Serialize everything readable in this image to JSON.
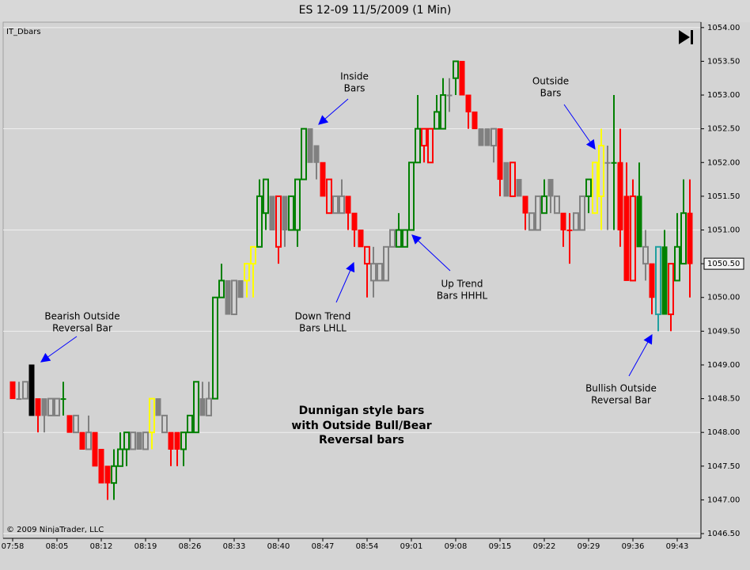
{
  "chart_data": {
    "type": "candlestick",
    "title": "ES 12-09  11/5/2009 (1 Min)",
    "indicator_label": "IT_Dbars",
    "copyright": "© 2009 NinjaTrader, LLC",
    "categories": [
      "07:58",
      null,
      null,
      null,
      null,
      null,
      null,
      "08:05",
      null,
      null,
      null,
      null,
      null,
      null,
      "08:12",
      null,
      null,
      null,
      null,
      null,
      null,
      "08:19",
      null,
      null,
      null,
      null,
      null,
      null,
      "08:26",
      null,
      null,
      null,
      null,
      null,
      null,
      "08:33",
      null,
      null,
      null,
      null,
      null,
      null,
      "08:40",
      null,
      null,
      null,
      null,
      null,
      null,
      "08:47",
      null,
      null,
      null,
      null,
      null,
      null,
      "08:54",
      null,
      null,
      null,
      null,
      null,
      null,
      "09:01",
      null,
      null,
      null,
      null,
      null,
      null,
      "09:08",
      null,
      null,
      null,
      null,
      null,
      null,
      "09:15",
      null,
      null,
      null,
      null,
      null,
      null,
      "09:22",
      null,
      null,
      null,
      null,
      null,
      null,
      "09:29",
      null,
      null,
      null,
      null,
      null,
      null,
      "09:36",
      null,
      null,
      null,
      null,
      null,
      null,
      "09:43",
      null,
      null
    ],
    "open": [
      1048.75,
      1048.5,
      1048.5,
      1049.0,
      1048.5,
      1048.5,
      1048.25,
      1048.25,
      1048.5,
      1048.25,
      1048.0,
      1048.0,
      1047.75,
      1048.0,
      1047.75,
      1047.5,
      1047.25,
      1047.5,
      1047.75,
      1047.75,
      1048.0,
      1047.75,
      1048.0,
      1048.5,
      1048.0,
      1048.0,
      1048.0,
      1047.75,
      1048.0,
      1048.0,
      1048.5,
      1048.25,
      1048.5,
      1050.0,
      1050.25,
      1049.75,
      1050.25,
      1050.25,
      1050.5,
      1050.75,
      1051.25,
      1051.5,
      1050.75,
      1051.5,
      1051.0,
      1051.0,
      1051.75,
      1052.5,
      1052.25,
      1052.0,
      1051.25,
      1051.25,
      1051.25,
      1051.5,
      1051.25,
      1051.0,
      1050.5,
      1050.25,
      1050.25,
      1050.25,
      1050.75,
      1050.75,
      1050.75,
      1051.0,
      1052.0,
      1052.25,
      1052.0,
      1052.5,
      1052.5,
      1053.0,
      1053.25,
      1053.5,
      1053.0,
      1052.75,
      1052.5,
      1052.5,
      1052.25,
      1052.5,
      1052.0,
      1051.5,
      1051.75,
      1051.5,
      1051.0,
      1051.0,
      1051.25,
      1051.75,
      1051.25,
      1051.25,
      1051.0,
      1051.0,
      1051.0,
      1051.5,
      1051.25,
      1051.5,
      1052.0,
      1052.0,
      1052.0,
      1051.5,
      1050.25,
      1051.5,
      1050.5,
      1050.5,
      1049.75,
      1050.75,
      1049.75,
      1050.25,
      1050.5,
      1051.25
    ],
    "high": [
      1048.75,
      1048.75,
      1048.75,
      1049.0,
      1048.5,
      1048.5,
      1048.5,
      1048.5,
      1048.75,
      1048.25,
      1048.25,
      1048.0,
      1048.25,
      1048.0,
      1047.75,
      1047.5,
      1047.75,
      1048.0,
      1048.0,
      1048.0,
      1048.0,
      1048.0,
      1048.5,
      1048.5,
      1048.25,
      1048.0,
      1048.0,
      1048.0,
      1048.25,
      1048.75,
      1048.75,
      1048.75,
      1050.0,
      1050.5,
      1050.25,
      1050.25,
      1050.25,
      1050.5,
      1050.75,
      1051.75,
      1051.75,
      1051.5,
      1051.5,
      1051.5,
      1051.5,
      1051.75,
      1052.5,
      1052.5,
      1052.25,
      1052.0,
      1051.75,
      1051.5,
      1051.75,
      1051.5,
      1051.25,
      1051.0,
      1050.75,
      1050.75,
      1050.5,
      1050.75,
      1051.0,
      1051.25,
      1051.0,
      1052.0,
      1053.0,
      1052.5,
      1052.5,
      1053.0,
      1053.25,
      1053.25,
      1053.5,
      1053.5,
      1053.0,
      1052.75,
      1052.5,
      1052.5,
      1052.5,
      1052.5,
      1052.0,
      1052.0,
      1051.75,
      1051.5,
      1051.25,
      1051.5,
      1051.75,
      1051.75,
      1051.5,
      1051.25,
      1051.25,
      1051.25,
      1051.5,
      1051.75,
      1052.0,
      1052.5,
      1052.25,
      1053.0,
      1052.5,
      1052.0,
      1051.75,
      1052.0,
      1051.0,
      1050.5,
      1050.75,
      1051.0,
      1050.5,
      1051.25,
      1051.75,
      1051.75
    ],
    "low": [
      1048.5,
      1048.5,
      1048.5,
      1048.25,
      1048.0,
      1048.0,
      1048.25,
      1048.25,
      1048.25,
      1048.0,
      1048.0,
      1047.75,
      1047.75,
      1047.5,
      1047.25,
      1047.0,
      1047.0,
      1047.5,
      1047.5,
      1047.75,
      1047.75,
      1047.75,
      1047.75,
      1048.25,
      1048.0,
      1047.5,
      1047.5,
      1047.5,
      1048.0,
      1048.0,
      1048.25,
      1048.25,
      1048.5,
      1050.0,
      1049.75,
      1049.75,
      1050.0,
      1050.0,
      1050.0,
      1050.75,
      1051.0,
      1051.0,
      1050.5,
      1050.75,
      1051.0,
      1050.75,
      1051.75,
      1052.0,
      1051.75,
      1051.5,
      1051.25,
      1051.25,
      1051.25,
      1051.0,
      1050.75,
      1050.75,
      1050.0,
      1050.0,
      1050.25,
      1050.25,
      1050.75,
      1050.75,
      1050.75,
      1051.0,
      1052.0,
      1052.0,
      1052.0,
      1052.5,
      1052.5,
      1052.75,
      1053.0,
      1053.0,
      1052.5,
      1052.5,
      1052.25,
      1052.25,
      1052.0,
      1051.5,
      1051.5,
      1051.5,
      1051.5,
      1051.0,
      1051.0,
      1051.0,
      1051.25,
      1051.25,
      1051.25,
      1050.75,
      1050.5,
      1051.0,
      1051.0,
      1051.25,
      1051.25,
      1051.0,
      1051.0,
      1051.0,
      1050.75,
      1050.25,
      1050.25,
      1050.75,
      1050.25,
      1049.75,
      1049.5,
      1049.75,
      1049.5,
      1050.25,
      1050.5,
      1050.0
    ],
    "close": [
      1048.5,
      1048.5,
      1048.75,
      1048.25,
      1048.25,
      1048.25,
      1048.5,
      1048.5,
      1048.5,
      1048.0,
      1048.25,
      1047.75,
      1048.0,
      1047.5,
      1047.25,
      1047.25,
      1047.5,
      1047.75,
      1048.0,
      1048.0,
      1047.75,
      1048.0,
      1048.5,
      1048.25,
      1048.25,
      1047.75,
      1047.75,
      1048.0,
      1048.25,
      1048.75,
      1048.25,
      1048.5,
      1050.0,
      1050.25,
      1049.75,
      1050.25,
      1050.0,
      1050.5,
      1050.75,
      1051.5,
      1051.75,
      1051.0,
      1051.5,
      1051.0,
      1051.5,
      1051.75,
      1052.5,
      1052.0,
      1052.0,
      1051.5,
      1051.75,
      1051.5,
      1051.5,
      1051.25,
      1051.0,
      1050.75,
      1050.75,
      1050.5,
      1050.5,
      1050.75,
      1051.0,
      1051.0,
      1051.0,
      1052.0,
      1052.5,
      1052.5,
      1052.5,
      1052.75,
      1053.0,
      1053.0,
      1053.5,
      1053.0,
      1052.75,
      1052.5,
      1052.25,
      1052.25,
      1052.5,
      1051.75,
      1051.5,
      1052.0,
      1051.5,
      1051.25,
      1051.25,
      1051.5,
      1051.5,
      1051.5,
      1051.5,
      1051.0,
      1051.0,
      1051.25,
      1051.5,
      1051.75,
      1052.0,
      1052.25,
      1052.0,
      1052.0,
      1051.0,
      1050.25,
      1051.5,
      1050.75,
      1050.75,
      1050.0,
      1050.75,
      1049.75,
      1050.5,
      1050.75,
      1051.25,
      1050.5
    ],
    "colors": [
      "#ff0000",
      "#808080",
      "#808080",
      "#000000",
      "#ff0000",
      "#808080",
      "#808080",
      "#808080",
      "#008000",
      "#ff0000",
      "#808080",
      "#ff0000",
      "#808080",
      "#ff0000",
      "#ff0000",
      "#ff0000",
      "#008000",
      "#008000",
      "#008000",
      "#808080",
      "#808080",
      "#808080",
      "#ffff00",
      "#808080",
      "#808080",
      "#ff0000",
      "#ff0000",
      "#008000",
      "#008000",
      "#008000",
      "#808080",
      "#808080",
      "#008000",
      "#008000",
      "#808080",
      "#808080",
      "#808080",
      "#ffff00",
      "#ffff00",
      "#008000",
      "#008000",
      "#808080",
      "#ff0000",
      "#808080",
      "#008000",
      "#008000",
      "#008000",
      "#808080",
      "#808080",
      "#ff0000",
      "#ff0000",
      "#808080",
      "#808080",
      "#ff0000",
      "#ff0000",
      "#ff0000",
      "#ff0000",
      "#808080",
      "#808080",
      "#808080",
      "#808080",
      "#008000",
      "#008000",
      "#008000",
      "#008000",
      "#ff0000",
      "#ff0000",
      "#008000",
      "#008000",
      "#808080",
      "#008000",
      "#ff0000",
      "#ff0000",
      "#ff0000",
      "#808080",
      "#808080",
      "#808080",
      "#ff0000",
      "#808080",
      "#ff0000",
      "#808080",
      "#ff0000",
      "#808080",
      "#808080",
      "#008000",
      "#808080",
      "#808080",
      "#ff0000",
      "#ff0000",
      "#808080",
      "#808080",
      "#008000",
      "#ffff00",
      "#ffff00",
      "#808080",
      "#008000",
      "#ff0000",
      "#ff0000",
      "#ff0000",
      "#008000",
      "#808080",
      "#ff0000",
      "#20a0a0",
      "#008000",
      "#ff0000",
      "#008000",
      "#008000",
      "#ff0000"
    ],
    "ylim": [
      1046.43,
      1054.08
    ],
    "yticks": [
      {
        "value": 1046.5,
        "label": "1046.50"
      },
      {
        "value": 1047.0,
        "label": "1047.00"
      },
      {
        "value": 1047.5,
        "label": "1047.50"
      },
      {
        "value": 1048.0,
        "label": "1048.00"
      },
      {
        "value": 1048.5,
        "label": "1048.50"
      },
      {
        "value": 1049.0,
        "label": "1049.00"
      },
      {
        "value": 1049.5,
        "label": "1049.50"
      },
      {
        "value": 1050.0,
        "label": "1050.00"
      },
      {
        "value": 1050.5,
        "label": "1050.50"
      },
      {
        "value": 1051.0,
        "label": "1051.00"
      },
      {
        "value": 1051.5,
        "label": "1051.50"
      },
      {
        "value": 1052.0,
        "label": "1052.00"
      },
      {
        "value": 1052.5,
        "label": "1052.50"
      },
      {
        "value": 1053.0,
        "label": "1053.00"
      },
      {
        "value": 1053.5,
        "label": "1053.50"
      },
      {
        "value": 1054.0,
        "label": "1054.00"
      }
    ],
    "last_price": {
      "value": 1050.5,
      "label": "1050.50"
    },
    "grid": true,
    "annotations": [
      {
        "lines": [
          "Bearish Outside",
          "Reversal Bar"
        ]
      },
      {
        "lines": [
          "Inside",
          "Bars"
        ]
      },
      {
        "lines": [
          "Outside",
          "Bars"
        ]
      },
      {
        "lines": [
          "Up Trend",
          "Bars HHHL"
        ]
      },
      {
        "lines": [
          "Down Trend",
          "Bars LHLL"
        ]
      },
      {
        "lines": [
          "Bullish Outside",
          "Reversal Bar"
        ]
      },
      {
        "lines": [
          "Dunnigan style bars",
          "with Outside Bull/Bear",
          "Reversal bars"
        ]
      }
    ]
  }
}
